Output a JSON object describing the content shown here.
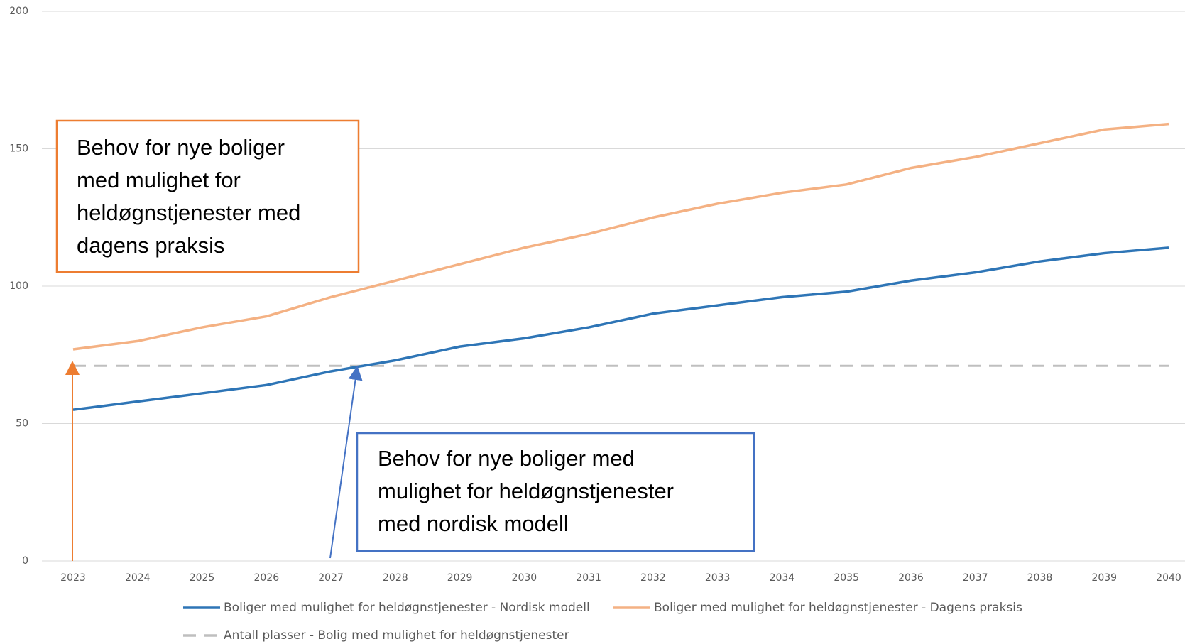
{
  "chart_data": {
    "type": "line",
    "categories": [
      "2023",
      "2024",
      "2025",
      "2026",
      "2027",
      "2028",
      "2029",
      "2030",
      "2031",
      "2032",
      "2033",
      "2034",
      "2035",
      "2036",
      "2037",
      "2038",
      "2039",
      "2040"
    ],
    "series": [
      {
        "name": "Boliger med mulighet for heldøgnstjenester - Nordisk modell",
        "color": "#2e75b6",
        "dash": false,
        "values": [
          55,
          58,
          61,
          64,
          69,
          73,
          78,
          81,
          85,
          90,
          93,
          96,
          98,
          102,
          105,
          109,
          112,
          114
        ]
      },
      {
        "name": "Boliger med mulighet for heldøgnstjenester - Dagens praksis",
        "color": "#f4b183",
        "dash": false,
        "values": [
          77,
          80,
          85,
          89,
          96,
          102,
          108,
          114,
          119,
          125,
          130,
          134,
          137,
          143,
          147,
          152,
          157,
          159
        ]
      },
      {
        "name": "Antall plasser - Bolig med mulighet for heldøgnstjenester",
        "color": "#bfbfbf",
        "dash": true,
        "values": [
          71,
          71,
          71,
          71,
          71,
          71,
          71,
          71,
          71,
          71,
          71,
          71,
          71,
          71,
          71,
          71,
          71,
          71
        ]
      }
    ],
    "ylim": [
      0,
      200
    ],
    "yticks": [
      0,
      50,
      100,
      150,
      200
    ],
    "grid": true,
    "annotations": [
      {
        "lines": [
          "Behov for nye boliger",
          "med mulighet for",
          "heldøgnstjenester med",
          "dagens praksis"
        ],
        "color": "#ed7d31"
      },
      {
        "lines": [
          "Behov for nye boliger med",
          "mulighet for heldøgnstjenester",
          "med nordisk modell"
        ],
        "color": "#4472c4"
      }
    ]
  }
}
